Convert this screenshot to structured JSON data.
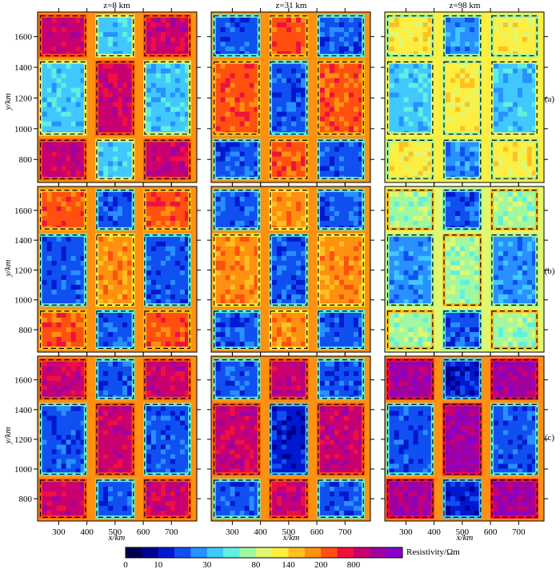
{
  "chart_data": {
    "type": "heatmap",
    "depth_titles": [
      "z=8 km",
      "z=31 km",
      "z=98 km"
    ],
    "row_labels": [
      "(a)",
      "(b)",
      "(c)"
    ],
    "xlabel": "x/km",
    "ylabel": "y/km",
    "x_ticks": [
      300,
      400,
      500,
      600,
      700
    ],
    "y_ticks": [
      800,
      1000,
      1200,
      1400,
      1600
    ],
    "xlim": [
      225,
      790
    ],
    "ylim": [
      650,
      1760
    ],
    "block_grid": {
      "x_edges": [
        [
          235,
          395
        ],
        [
          435,
          565
        ],
        [
          605,
          765
        ]
      ],
      "y_edges": [
        [
          675,
          925
        ],
        [
          965,
          1435
        ],
        [
          1475,
          1735
        ]
      ]
    },
    "colorbar": {
      "label": "Resistivity/Ωm",
      "tick_labels": [
        "0",
        "10",
        "30",
        "80",
        "140",
        "200",
        "800"
      ],
      "colors": [
        "#000050",
        "#000090",
        "#0018d0",
        "#1050f0",
        "#2890ff",
        "#40c8ff",
        "#60f0e0",
        "#a0f8a0",
        "#e0f870",
        "#ffee40",
        "#ffc020",
        "#ff9010",
        "#ff5010",
        "#f01040",
        "#c80070",
        "#a000a0",
        "#8800cc"
      ]
    },
    "panels": [
      [
        [
          [
            14,
            5,
            14
          ],
          [
            5,
            14,
            5
          ],
          [
            14,
            5,
            14
          ]
        ],
        [
          [
            3,
            12,
            3
          ],
          [
            12,
            3,
            12
          ],
          [
            3,
            12,
            3
          ]
        ],
        [
          [
            9,
            4,
            9
          ],
          [
            5,
            9,
            5
          ],
          [
            9,
            4,
            9
          ]
        ]
      ],
      [
        [
          [
            12,
            3,
            12
          ],
          [
            3,
            11,
            3
          ],
          [
            12,
            3,
            12
          ]
        ],
        [
          [
            3,
            11,
            3
          ],
          [
            11,
            3,
            11
          ],
          [
            3,
            11,
            3
          ]
        ],
        [
          [
            7,
            3,
            7
          ],
          [
            4,
            7,
            4
          ],
          [
            7,
            3,
            7
          ]
        ]
      ],
      [
        [
          [
            14,
            3,
            14
          ],
          [
            3,
            14,
            3
          ],
          [
            14,
            3,
            14
          ]
        ],
        [
          [
            3,
            14,
            3
          ],
          [
            14,
            2,
            14
          ],
          [
            3,
            14,
            3
          ]
        ],
        [
          [
            15,
            2,
            15
          ],
          [
            3,
            15,
            3
          ],
          [
            15,
            2,
            15
          ]
        ]
      ]
    ]
  }
}
